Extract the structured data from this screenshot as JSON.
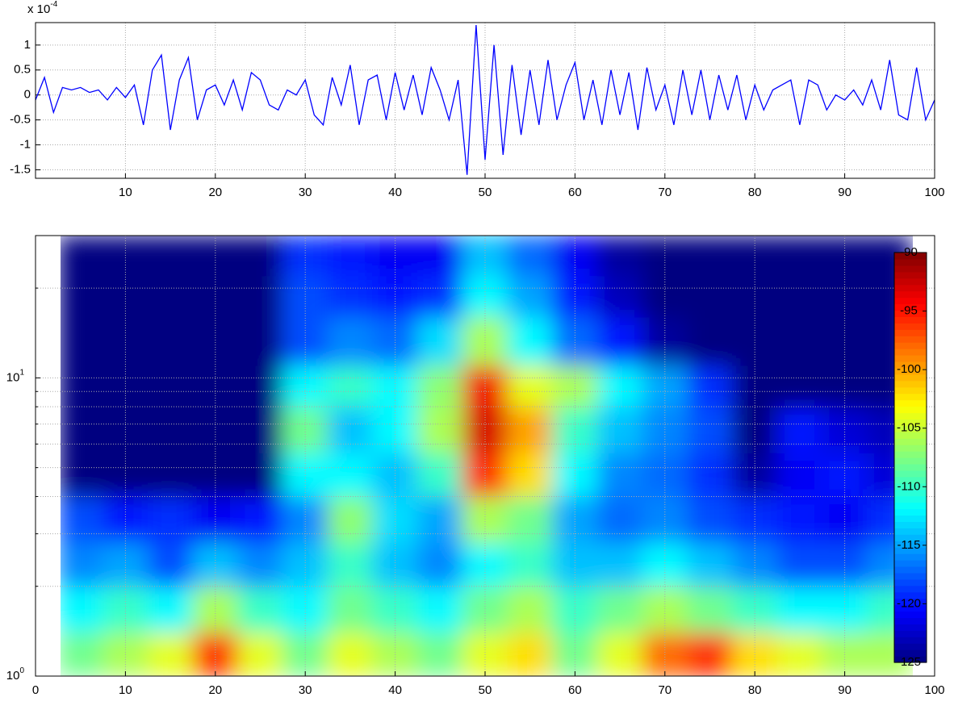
{
  "chart_data": [
    {
      "type": "line",
      "y_multiplier": {
        "base": "x 10",
        "exponent": "-4"
      },
      "x": [
        0,
        1,
        2,
        3,
        4,
        5,
        6,
        7,
        8,
        9,
        10,
        11,
        12,
        13,
        14,
        15,
        16,
        17,
        18,
        19,
        20,
        21,
        22,
        23,
        24,
        25,
        26,
        27,
        28,
        29,
        30,
        31,
        32,
        33,
        34,
        35,
        36,
        37,
        38,
        39,
        40,
        41,
        42,
        43,
        44,
        45,
        46,
        47,
        48,
        49,
        50,
        51,
        52,
        53,
        54,
        55,
        56,
        57,
        58,
        59,
        60,
        61,
        62,
        63,
        64,
        65,
        66,
        67,
        68,
        69,
        70,
        71,
        72,
        73,
        74,
        75,
        76,
        77,
        78,
        79,
        80,
        81,
        82,
        83,
        84,
        85,
        86,
        87,
        88,
        89,
        90,
        91,
        92,
        93,
        94,
        95,
        96,
        97,
        98,
        99,
        100
      ],
      "series": [
        {
          "color": "#0000ff",
          "values": [
            -0.1,
            0.35,
            -0.35,
            0.15,
            0.1,
            0.15,
            0.05,
            0.1,
            -0.1,
            0.15,
            -0.05,
            0.2,
            -0.6,
            0.5,
            0.8,
            -0.7,
            0.3,
            0.75,
            -0.5,
            0.1,
            0.2,
            -0.2,
            0.3,
            -0.3,
            0.45,
            0.3,
            -0.2,
            -0.3,
            0.1,
            0.0,
            0.3,
            -0.4,
            -0.6,
            0.35,
            -0.2,
            0.6,
            -0.6,
            0.3,
            0.4,
            -0.5,
            0.45,
            -0.3,
            0.4,
            -0.4,
            0.55,
            0.1,
            -0.5,
            0.3,
            -1.6,
            1.4,
            -1.3,
            1.0,
            -1.2,
            0.6,
            -0.8,
            0.5,
            -0.6,
            0.7,
            -0.5,
            0.2,
            0.65,
            -0.5,
            0.3,
            -0.6,
            0.5,
            -0.4,
            0.45,
            -0.7,
            0.55,
            -0.3,
            0.2,
            -0.6,
            0.5,
            -0.4,
            0.5,
            -0.5,
            0.4,
            -0.3,
            0.4,
            -0.5,
            0.2,
            -0.3,
            0.1,
            0.2,
            0.3,
            -0.6,
            0.3,
            0.2,
            -0.3,
            0.0,
            -0.1,
            0.1,
            -0.2,
            0.3,
            -0.3,
            0.7,
            -0.4,
            -0.5,
            0.55,
            -0.5,
            -0.1
          ]
        }
      ],
      "xlim": [
        0,
        100
      ],
      "xticks": [
        10,
        20,
        30,
        40,
        50,
        60,
        70,
        80,
        90,
        100
      ],
      "ylim": [
        -1.67,
        1.45
      ],
      "yticks": [
        -1.5,
        -1,
        -0.5,
        0,
        0.5,
        1
      ],
      "grid": true
    },
    {
      "type": "heatmap",
      "colormap": "jet",
      "clim": [
        -125,
        -90
      ],
      "x_edges": [
        2.5,
        7.5,
        12.5,
        17.5,
        22.5,
        27.5,
        32.5,
        37.5,
        42.5,
        47.5,
        52.5,
        57.5,
        62.5,
        67.5,
        72.5,
        77.5,
        82.5,
        87.5,
        92.5,
        97.5
      ],
      "y_edges": [
        1,
        1.4,
        2,
        2.8,
        4,
        5.6,
        8,
        11,
        16,
        22,
        30
      ],
      "z": [
        [
          -108,
          -106,
          -104,
          -96,
          -104,
          -108,
          -104,
          -106,
          -108,
          -104,
          -102,
          -108,
          -104,
          -98,
          -96,
          -102,
          -104,
          -106,
          -106
        ],
        [
          -112,
          -110,
          -112,
          -106,
          -110,
          -112,
          -108,
          -110,
          -112,
          -108,
          -106,
          -110,
          -108,
          -106,
          -108,
          -110,
          -112,
          -112,
          -110
        ],
        [
          -116,
          -115,
          -118,
          -114,
          -116,
          -114,
          -110,
          -114,
          -116,
          -112,
          -110,
          -114,
          -114,
          -112,
          -114,
          -116,
          -118,
          -118,
          -116
        ],
        [
          -118,
          -120,
          -119,
          -121,
          -120,
          -116,
          -107,
          -113,
          -115,
          -106,
          -108,
          -115,
          -117,
          -116,
          -118,
          -119,
          -120,
          -121,
          -119
        ],
        [
          -125,
          -125,
          -125,
          -125,
          -125,
          -112,
          -112,
          -114,
          -110,
          -96,
          -102,
          -112,
          -116,
          -117,
          -119,
          -124,
          -121,
          -120,
          -122
        ],
        [
          -125,
          -125,
          -125,
          -125,
          -125,
          -108,
          -114,
          -112,
          -106,
          -93,
          -100,
          -110,
          -114,
          -116,
          -118,
          -125,
          -120,
          -122,
          -123
        ],
        [
          -125,
          -125,
          -125,
          -125,
          -125,
          -112,
          -110,
          -112,
          -107,
          -94,
          -104,
          -106,
          -112,
          -115,
          -119,
          -125,
          -125,
          -125,
          -125
        ],
        [
          -125,
          -125,
          -125,
          -125,
          -125,
          -118,
          -116,
          -117,
          -113,
          -106,
          -112,
          -117,
          -120,
          -124,
          -125,
          -125,
          -125,
          -125,
          -125
        ],
        [
          -125,
          -125,
          -125,
          -125,
          -125,
          -118,
          -119,
          -120,
          -119,
          -112,
          -115,
          -120,
          -123,
          -125,
          -125,
          -125,
          -125,
          -125,
          -125
        ],
        [
          -125,
          -125,
          -125,
          -125,
          -125,
          -119,
          -120,
          -121,
          -121,
          -114,
          -117,
          -121,
          -124,
          -125,
          -125,
          -125,
          -125,
          -125,
          -125
        ]
      ],
      "xlim": [
        0,
        100
      ],
      "xticks": [
        0,
        10,
        20,
        30,
        40,
        50,
        60,
        70,
        80,
        90,
        100
      ],
      "yscale": "log",
      "ylim": [
        1,
        30
      ],
      "yticks": [
        {
          "value": 1,
          "label": "10",
          "exponent": "0"
        },
        {
          "value": 10,
          "label": "10",
          "exponent": "1"
        }
      ],
      "minor_yticks": [
        2,
        3,
        4,
        5,
        6,
        7,
        8,
        9,
        20,
        30
      ],
      "colorbar_ticks": [
        -90,
        -95,
        -100,
        -105,
        -110,
        -115,
        -120,
        -125
      ],
      "grid": true
    }
  ]
}
